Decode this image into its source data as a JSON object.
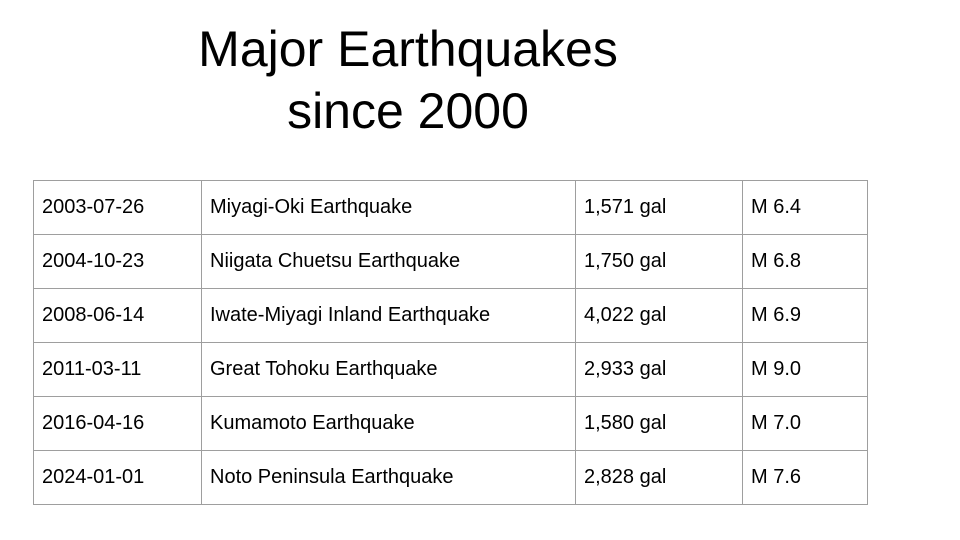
{
  "title": "Major Earthquakes\nsince 2000",
  "table": {
    "rows": [
      [
        "2003-07-26",
        "Miyagi-Oki Earthquake",
        "1,571 gal",
        "M 6.4"
      ],
      [
        "2004-10-23",
        "Niigata Chuetsu Earthquake",
        "1,750 gal",
        "M 6.8"
      ],
      [
        "2008-06-14",
        "Iwate-Miyagi Inland Earthquake",
        "4,022 gal",
        "M 6.9"
      ],
      [
        "2011-03-11",
        "Great Tohoku Earthquake",
        "2,933 gal",
        "M 9.0"
      ],
      [
        "2016-04-16",
        "Kumamoto Earthquake",
        "1,580 gal",
        "M 7.0"
      ],
      [
        "2024-01-01",
        "Noto Peninsula Earthquake",
        "2,828 gal",
        "M 7.6"
      ]
    ]
  }
}
